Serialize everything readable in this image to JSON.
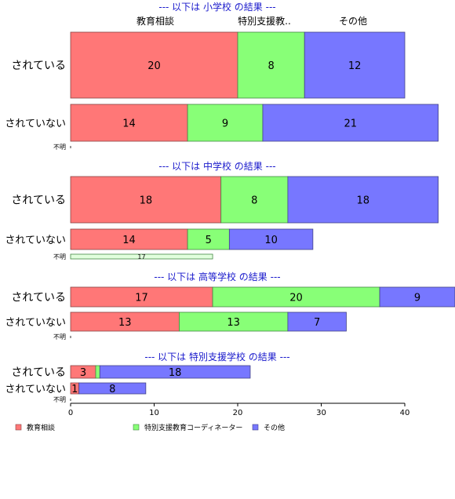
{
  "chart_data": {
    "type": "bar",
    "orientation": "horizontal",
    "stacked": true,
    "series_names": [
      "教育相談",
      "特別支援教育コーディネーター",
      "その他"
    ],
    "top_column_labels": [
      "教育相談",
      "特別支援教..",
      "その他"
    ],
    "colors": [
      "#ff7777",
      "#88ff77",
      "#7777ff"
    ],
    "xlim": [
      0,
      40
    ],
    "xticks": [
      0,
      10,
      20,
      30,
      40
    ],
    "legend_position": "bottom",
    "panels": [
      {
        "title": "--- 以下は 小学校 の結果 ---",
        "rows": [
          {
            "label": "されている",
            "values": [
              20,
              8,
              12
            ]
          },
          {
            "label": "されていない",
            "values": [
              14,
              9,
              21
            ]
          },
          {
            "label": "不明",
            "values": [
              0,
              0,
              0
            ]
          }
        ]
      },
      {
        "title": "--- 以下は 中学校 の結果 ---",
        "rows": [
          {
            "label": "されている",
            "values": [
              18,
              8,
              18
            ]
          },
          {
            "label": "されていない",
            "values": [
              14,
              5,
              10
            ]
          },
          {
            "label": "不明",
            "values": [
              0,
              17,
              0
            ]
          }
        ]
      },
      {
        "title": "--- 以下は 高等学校 の結果 ---",
        "rows": [
          {
            "label": "されている",
            "values": [
              17,
              20,
              9
            ]
          },
          {
            "label": "されていない",
            "values": [
              13,
              13,
              7
            ]
          },
          {
            "label": "不明",
            "values": [
              0,
              0,
              0
            ]
          }
        ]
      },
      {
        "title": "--- 以下は 特別支援学校 の結果 ---",
        "rows": [
          {
            "label": "されている",
            "values": [
              3,
              0.5,
              18
            ]
          },
          {
            "label": "されていない",
            "values": [
              1,
              0,
              8
            ]
          },
          {
            "label": "不明",
            "values": [
              0,
              0,
              0
            ]
          }
        ]
      }
    ]
  }
}
